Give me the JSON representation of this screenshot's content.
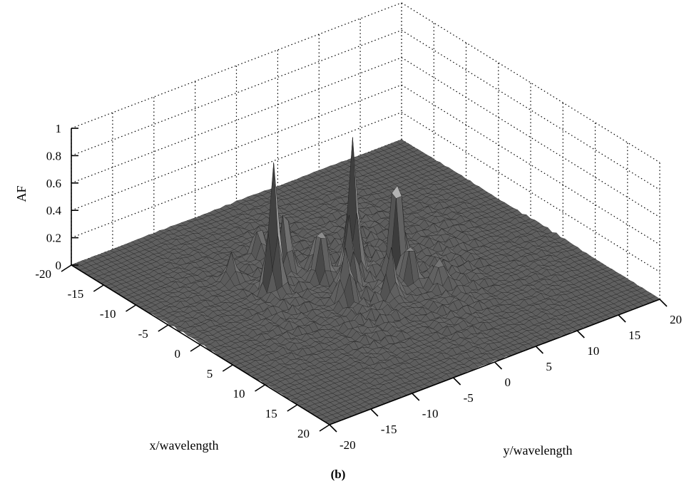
{
  "chart_data": {
    "type": "surface",
    "caption": "(b)",
    "xlabel": "x/wavelength",
    "ylabel": "y/wavelength",
    "zlabel": "AF",
    "xlim": [
      -20,
      20
    ],
    "ylim": [
      -20,
      20
    ],
    "zlim": [
      0,
      1
    ],
    "x_ticks": [
      "-20",
      "-15",
      "-10",
      "-5",
      "0",
      "5",
      "10",
      "15",
      "20"
    ],
    "y_ticks": [
      "-20",
      "-15",
      "-10",
      "-5",
      "0",
      "5",
      "10",
      "15",
      "20"
    ],
    "z_ticks": [
      "0",
      "0.2",
      "0.4",
      "0.6",
      "0.8",
      "1"
    ],
    "grid": true,
    "colormap": "gray",
    "peaks": [
      {
        "x": -6,
        "y": -5,
        "z": 0.45
      },
      {
        "x": -4,
        "y": -8,
        "z": 0.9
      },
      {
        "x": -5,
        "y": -2,
        "z": 0.25
      },
      {
        "x": -2,
        "y": 0,
        "z": 0.95
      },
      {
        "x": 1,
        "y": 3,
        "z": 0.88
      },
      {
        "x": 3,
        "y": 3,
        "z": 0.35
      },
      {
        "x": -3,
        "y": -3,
        "z": 0.45
      },
      {
        "x": 2,
        "y": -4,
        "z": 0.4
      },
      {
        "x": 0,
        "y": -2,
        "z": 0.5
      },
      {
        "x": -1,
        "y": 5,
        "z": 0.3
      },
      {
        "x": 4,
        "y": 0,
        "z": 0.3
      },
      {
        "x": -8,
        "y": -10,
        "z": 0.2
      },
      {
        "x": -10,
        "y": -5,
        "z": 0.22
      },
      {
        "x": 5,
        "y": 5,
        "z": 0.2
      }
    ]
  }
}
